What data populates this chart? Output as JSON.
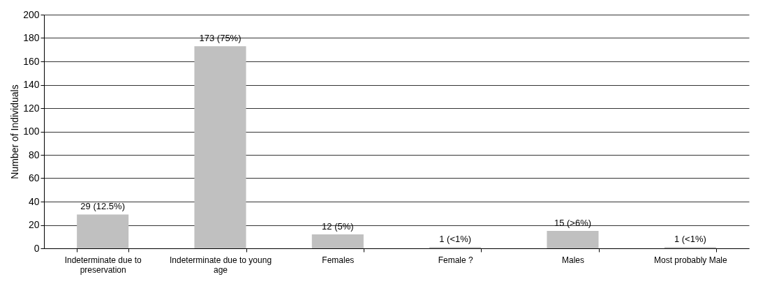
{
  "chart_data": {
    "type": "bar",
    "ylabel": "Number of Individuals",
    "categories": [
      "Indeterminate due to preservation",
      "Indeterminate due to young age",
      "Females",
      "Female ?",
      "Males",
      "Most probably Male"
    ],
    "values": [
      29,
      173,
      12,
      1,
      15,
      1
    ],
    "value_labels": [
      "29 (12.5%)",
      "173 (75%)",
      "12 (5%)",
      "1 (<1%)",
      "15 (>6%)",
      "1 (<1%)"
    ],
    "color": "#c0c0c0",
    "ylim": [
      0,
      200
    ],
    "yticks": [
      0,
      20,
      40,
      60,
      80,
      100,
      120,
      140,
      160,
      180,
      200
    ],
    "grid": "y"
  }
}
